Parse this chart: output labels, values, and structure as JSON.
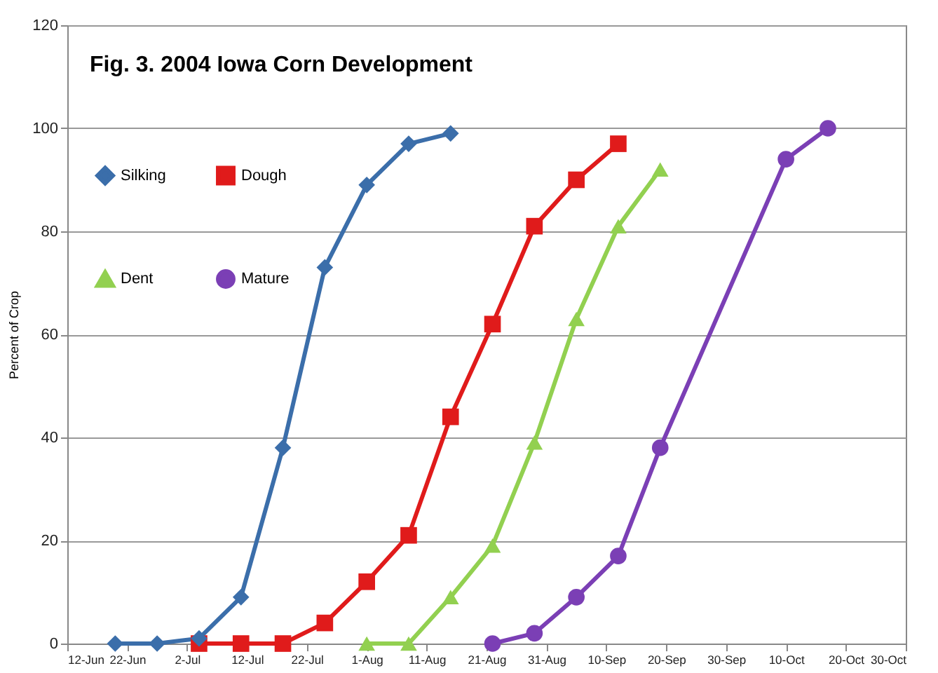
{
  "chart_data": {
    "type": "line",
    "title": "Fig. 3.  2004 Iowa Corn Development",
    "ylabel": "Percent of Crop",
    "series": [
      {
        "name": "Silking",
        "color": "#3b6eaa",
        "marker": "diamond",
        "x": [
          "2004-06-20",
          "2004-06-27",
          "2004-07-04",
          "2004-07-11",
          "2004-07-18",
          "2004-07-25",
          "2004-08-01",
          "2004-08-08",
          "2004-08-15"
        ],
        "values": [
          0,
          0,
          1,
          9,
          38,
          73,
          89,
          97,
          99
        ]
      },
      {
        "name": "Dough",
        "color": "#e01b1b",
        "marker": "square",
        "x": [
          "2004-07-04",
          "2004-07-11",
          "2004-07-18",
          "2004-07-25",
          "2004-08-01",
          "2004-08-08",
          "2004-08-15",
          "2004-08-22",
          "2004-08-29",
          "2004-09-05",
          "2004-09-12"
        ],
        "values": [
          0,
          0,
          0,
          4,
          12,
          21,
          44,
          62,
          81,
          90,
          97
        ]
      },
      {
        "name": "Dent",
        "color": "#92d050",
        "marker": "triangle",
        "x": [
          "2004-08-01",
          "2004-08-08",
          "2004-08-15",
          "2004-08-22",
          "2004-08-29",
          "2004-09-05",
          "2004-09-12",
          "2004-09-19"
        ],
        "values": [
          0,
          0,
          9,
          19,
          39,
          63,
          81,
          92
        ]
      },
      {
        "name": "Mature",
        "color": "#7b3fb5",
        "marker": "circle",
        "x": [
          "2004-08-22",
          "2004-08-29",
          "2004-09-05",
          "2004-09-12",
          "2004-09-19",
          "2004-10-10",
          "2004-10-17"
        ],
        "values": [
          0,
          2,
          9,
          17,
          38,
          94,
          100
        ]
      }
    ],
    "xlim": [
      "2004-06-12",
      "2004-10-30"
    ],
    "xticks": [
      {
        "value": "2004-06-12",
        "label": "12-Jun"
      },
      {
        "value": "2004-06-22",
        "label": "22-Jun"
      },
      {
        "value": "2004-07-02",
        "label": "2-Jul"
      },
      {
        "value": "2004-07-12",
        "label": "12-Jul"
      },
      {
        "value": "2004-07-22",
        "label": "22-Jul"
      },
      {
        "value": "2004-08-01",
        "label": "1-Aug"
      },
      {
        "value": "2004-08-11",
        "label": "11-Aug"
      },
      {
        "value": "2004-08-21",
        "label": "21-Aug"
      },
      {
        "value": "2004-08-31",
        "label": "31-Aug"
      },
      {
        "value": "2004-09-10",
        "label": "10-Sep"
      },
      {
        "value": "2004-09-20",
        "label": "20-Sep"
      },
      {
        "value": "2004-09-30",
        "label": "30-Sep"
      },
      {
        "value": "2004-10-10",
        "label": "10-Oct"
      },
      {
        "value": "2004-10-20",
        "label": "20-Oct"
      },
      {
        "value": "2004-10-30",
        "label": "30-Oct"
      }
    ],
    "ylim": [
      0,
      120
    ],
    "yticks": [
      0,
      20,
      40,
      60,
      80,
      100,
      120
    ],
    "grid": "y",
    "legend": "top left",
    "line_style": "solid"
  }
}
